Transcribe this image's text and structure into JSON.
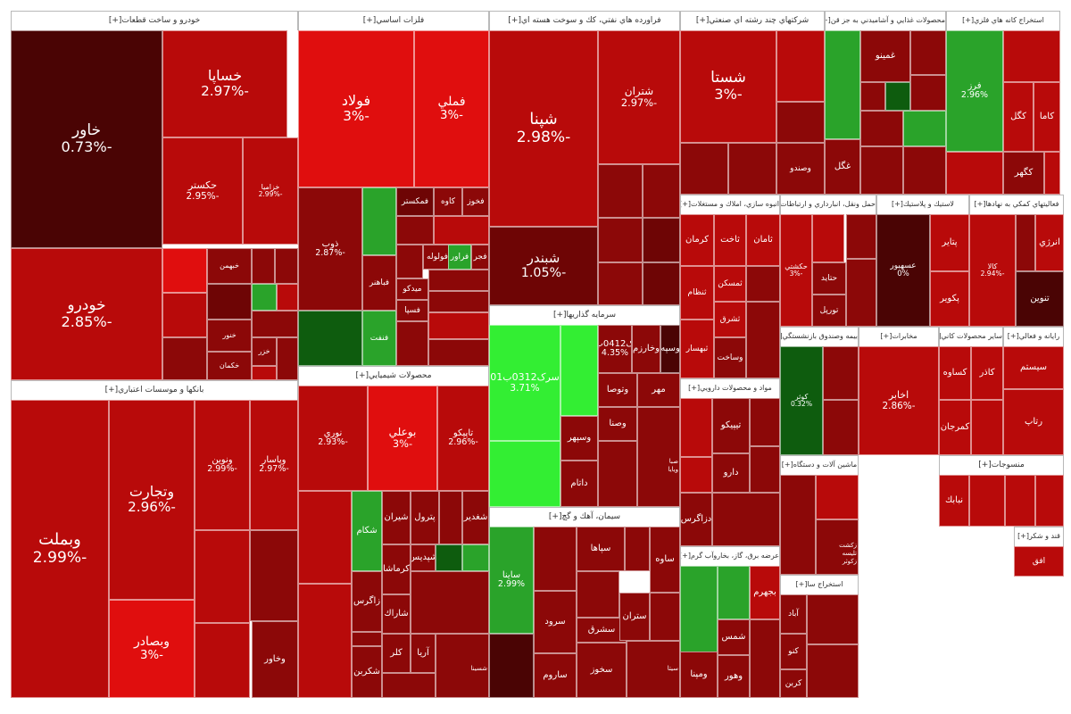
{
  "colors": {
    "deep": "#4a0404",
    "dark": "#6e0505",
    "maroon": "#8c0808",
    "red": "#b80a0a",
    "bright": "#e00e0e",
    "green": "#2aa32a",
    "lime": "#33ee33",
    "dkgreen": "#0e5c0e"
  },
  "sectors": [
    {
      "title": "خودرو و ساخت قطعات",
      "button": "[+]",
      "tiles": [
        {
          "name": "خاور",
          "pct": "-0.73%"
        },
        {
          "name": "خساپا",
          "pct": "-2.97%"
        },
        {
          "name": "حکستر",
          "pct": "-2.95%"
        },
        {
          "name": "خزامیا",
          "pct": "-2.99%"
        },
        {
          "name": "خودرو",
          "pct": "-2.85%"
        },
        {
          "name": "خبهمن",
          "pct": ""
        },
        {
          "name": "خنور",
          "pct": ""
        },
        {
          "name": "خکمان",
          "pct": ""
        },
        {
          "name": "خزر",
          "pct": ""
        }
      ]
    },
    {
      "title": "فلزات اساسي",
      "button": "[+]",
      "tiles": [
        {
          "name": "فولاد",
          "pct": "-3%"
        },
        {
          "name": "فملي",
          "pct": "-3%"
        },
        {
          "name": "ذوب",
          "pct": "-2.87%"
        },
        {
          "name": "فمكستر",
          "pct": ""
        },
        {
          "name": "كاوه",
          "pct": ""
        },
        {
          "name": "فخوز",
          "pct": ""
        },
        {
          "name": "فولوله",
          "pct": ""
        },
        {
          "name": "فراور",
          "pct": ""
        },
        {
          "name": "فجر",
          "pct": ""
        },
        {
          "name": "فباهنر",
          "pct": ""
        },
        {
          "name": "ميدكو",
          "pct": ""
        },
        {
          "name": "فسپا",
          "pct": ""
        },
        {
          "name": "فنفت",
          "pct": ""
        }
      ]
    },
    {
      "title": "فراورده هاي نفتي، كك و سوخت هسته اي",
      "button": "[+]",
      "tiles": [
        {
          "name": "شپنا",
          "pct": "-2.98%"
        },
        {
          "name": "شتران",
          "pct": "-2.97%"
        },
        {
          "name": "شبندر",
          "pct": "-1.05%"
        }
      ]
    },
    {
      "title": "شركتهاي چند رشته اي صنعتي",
      "button": "[+]",
      "tiles": [
        {
          "name": "شستا",
          "pct": "-3%"
        },
        {
          "name": "وصندو",
          "pct": ""
        }
      ]
    },
    {
      "title": "محصولات غذايي و آشاميدني به جز قن",
      "button": "[+]",
      "tiles": [
        {
          "name": "غگل",
          "pct": ""
        },
        {
          "name": "غمينو",
          "pct": ""
        }
      ]
    },
    {
      "title": "استخراج كانه هاي فلزي",
      "button": "[+]",
      "tiles": [
        {
          "name": "فرز",
          "pct": "2.96%"
        },
        {
          "name": "كگل",
          "pct": ""
        },
        {
          "name": "كاما",
          "pct": ""
        },
        {
          "name": "كگهر",
          "pct": ""
        }
      ]
    },
    {
      "title": "بانكها و موسسات اعتباري",
      "button": "[+]",
      "tiles": [
        {
          "name": "وبملت",
          "pct": "-2.99%"
        },
        {
          "name": "وتجارت",
          "pct": "-2.96%"
        },
        {
          "name": "وبصادر",
          "pct": "-3%"
        },
        {
          "name": "ونوين",
          "pct": "-2.99%"
        },
        {
          "name": "وپاسار",
          "pct": "-2.97%"
        },
        {
          "name": "وخاور",
          "pct": ""
        }
      ]
    },
    {
      "title": "محصولات شيميايي",
      "button": "[+]",
      "tiles": [
        {
          "name": "نوري",
          "pct": "-2.93%"
        },
        {
          "name": "بوعلي",
          "pct": "-3%"
        },
        {
          "name": "تاپيكو",
          "pct": "-2.96%"
        },
        {
          "name": "شكام",
          "pct": ""
        },
        {
          "name": "شيران",
          "pct": ""
        },
        {
          "name": "پترول",
          "pct": ""
        },
        {
          "name": "شغدير",
          "pct": ""
        },
        {
          "name": "شپدیس",
          "pct": ""
        },
        {
          "name": "كرماشا",
          "pct": ""
        },
        {
          "name": "شاراك",
          "pct": ""
        },
        {
          "name": "زاگرس",
          "pct": ""
        },
        {
          "name": "كلر",
          "pct": ""
        },
        {
          "name": "آريا",
          "pct": ""
        },
        {
          "name": "شكربن",
          "pct": ""
        },
        {
          "name": "شسينا",
          "pct": ""
        }
      ]
    },
    {
      "title": "سرمايه گذاريها",
      "button": "[+]",
      "tiles": [
        {
          "name": "سرک0312ب01",
          "pct": "3.71%"
        },
        {
          "name": "سرک0412ب03",
          "pct": "4.35%"
        },
        {
          "name": "وخارزم",
          "pct": ""
        },
        {
          "name": "وسپه",
          "pct": ""
        },
        {
          "name": "وتوصا",
          "pct": ""
        },
        {
          "name": "مهر",
          "pct": ""
        },
        {
          "name": "وسپهر",
          "pct": ""
        },
        {
          "name": "داتام",
          "pct": ""
        },
        {
          "name": "وصنا",
          "pct": ""
        },
        {
          "name": "ويايا",
          "pct": ""
        },
        {
          "name": "صبا",
          "pct": ""
        }
      ]
    },
    {
      "title": "سيمان، آهك و گچ",
      "button": "[+]",
      "tiles": [
        {
          "name": "ساينا",
          "pct": "2.99%"
        },
        {
          "name": "سپاها",
          "pct": ""
        },
        {
          "name": "ساوه",
          "pct": ""
        },
        {
          "name": "سشرق",
          "pct": ""
        },
        {
          "name": "سرود",
          "pct": ""
        },
        {
          "name": "ساروم",
          "pct": ""
        },
        {
          "name": "ستران",
          "pct": ""
        },
        {
          "name": "سخوز",
          "pct": ""
        },
        {
          "name": "سيتا",
          "pct": ""
        }
      ]
    },
    {
      "title": "انبوه سازي، املاك و مستغلات",
      "button": "[+]",
      "tiles": [
        {
          "name": "كرمان",
          "pct": ""
        },
        {
          "name": "ثاخت",
          "pct": ""
        },
        {
          "name": "ثامان",
          "pct": ""
        },
        {
          "name": "ثنظام",
          "pct": ""
        },
        {
          "name": "ثمسكن",
          "pct": ""
        },
        {
          "name": "ثبهسار",
          "pct": ""
        },
        {
          "name": "ثشرق",
          "pct": ""
        },
        {
          "name": "وساخت",
          "pct": ""
        }
      ]
    },
    {
      "title": "حمل ونقل، انبارداري و ارتباطات",
      "button": "[+]",
      "tiles": [
        {
          "name": "حكشتي",
          "pct": "-3%"
        },
        {
          "name": "حتايد",
          "pct": ""
        },
        {
          "name": "تورپل",
          "pct": ""
        }
      ]
    },
    {
      "title": "لاستيك و پلاستيك",
      "button": "[+]",
      "tiles": [
        {
          "name": "عسهيور",
          "pct": "0%"
        },
        {
          "name": "پتاير",
          "pct": ""
        },
        {
          "name": "پكوير",
          "pct": ""
        }
      ]
    },
    {
      "title": "فعاليتهاي كمكي به نهادها",
      "button": "[+]",
      "tiles": [
        {
          "name": "كالا",
          "pct": "-2.94%"
        },
        {
          "name": "انرژي",
          "pct": ""
        },
        {
          "name": "تنوين",
          "pct": ""
        }
      ]
    },
    {
      "title": "مواد و محصولات دارويي",
      "button": "[+]",
      "tiles": [
        {
          "name": "تيپيكو",
          "pct": ""
        },
        {
          "name": "دارو",
          "pct": ""
        },
        {
          "name": "دزاگرس",
          "pct": ""
        }
      ]
    },
    {
      "title": "بيمه وصندوق بازنشستگي",
      "button": "[+]",
      "tiles": [
        {
          "name": "كوثر",
          "pct": "0.32%"
        }
      ]
    },
    {
      "title": "مخابرات",
      "button": "[+]",
      "tiles": [
        {
          "name": "اخابر",
          "pct": "-2.86%"
        }
      ]
    },
    {
      "title": "ساير محصولات كاني",
      "button": "[+]",
      "tiles": [
        {
          "name": "كساوه",
          "pct": ""
        },
        {
          "name": "كاذر",
          "pct": ""
        },
        {
          "name": "كمرجان",
          "pct": ""
        }
      ]
    },
    {
      "title": "رايانه و فعالي",
      "button": "[+]",
      "tiles": [
        {
          "name": "سيستم",
          "pct": ""
        },
        {
          "name": "رتاپ",
          "pct": ""
        }
      ]
    },
    {
      "title": "عرضه برق، گاز، بخاروآب گرم",
      "button": "[+]",
      "tiles": [
        {
          "name": "بجهرم",
          "pct": ""
        },
        {
          "name": "شمس",
          "pct": ""
        },
        {
          "name": "ومپنا",
          "pct": ""
        },
        {
          "name": "وهور",
          "pct": ""
        }
      ]
    },
    {
      "title": "ماشين آلات و دستگاه",
      "button": "[+]",
      "tiles": [
        {
          "name": "زكوثر",
          "pct": ""
        },
        {
          "name": "تليسه",
          "pct": ""
        },
        {
          "name": "زكشت",
          "pct": ""
        }
      ]
    },
    {
      "title": "استخراج سا",
      "button": "[+]",
      "tiles": [
        {
          "name": "آباد",
          "pct": ""
        },
        {
          "name": "كنو",
          "pct": ""
        },
        {
          "name": "كربن",
          "pct": ""
        }
      ]
    },
    {
      "title": "منسوجات",
      "button": "[+]",
      "tiles": [
        {
          "name": "نبابك",
          "pct": ""
        }
      ]
    },
    {
      "title": "قند و شكر",
      "button": "[+]",
      "tiles": [
        {
          "name": "افق",
          "pct": ""
        }
      ]
    }
  ]
}
